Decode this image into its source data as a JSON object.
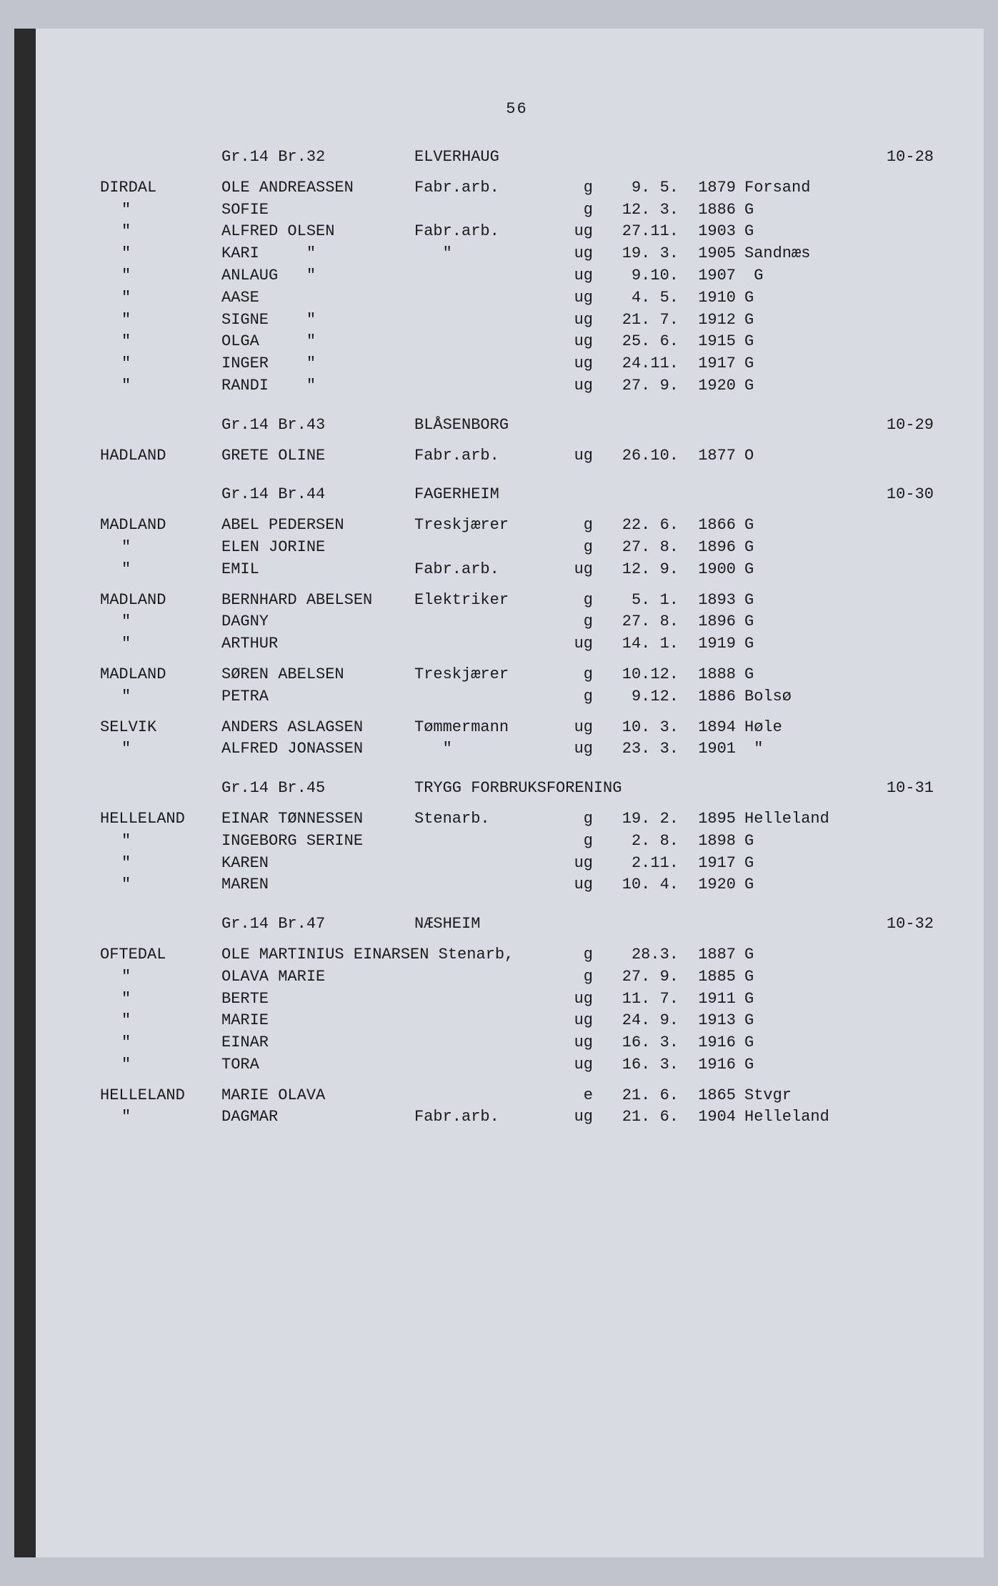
{
  "pageNumber": "56",
  "sections": [
    {
      "header": {
        "cadastre": "Gr.14 Br.32",
        "propertyName": "ELVERHAUG",
        "reference": "10-28"
      },
      "entries": [
        {
          "surname": "DIRDAL",
          "name": "OLE ANDREASSEN",
          "occupation": "Fabr.arb.",
          "status": "g",
          "date": "9. 5.",
          "year": "1879",
          "place": "Forsand"
        },
        {
          "surname": "\"",
          "name": "SOFIE",
          "occupation": "",
          "status": "g",
          "date": "12. 3.",
          "year": "1886",
          "place": "G"
        },
        {
          "surname": "\"",
          "name": "ALFRED OLSEN",
          "occupation": "Fabr.arb.",
          "status": "ug",
          "date": "27.11.",
          "year": "1903",
          "place": "G"
        },
        {
          "surname": "\"",
          "name": "KARI     \"",
          "occupation": "   \"",
          "status": "ug",
          "date": "19. 3.",
          "year": "1905",
          "place": "Sandnæs"
        },
        {
          "surname": "\"",
          "name": "ANLAUG   \"",
          "occupation": "",
          "status": "ug",
          "date": "9.10.",
          "year": "1907",
          "place": " G"
        },
        {
          "surname": "\"",
          "name": "AASE",
          "occupation": "",
          "status": "ug",
          "date": "4. 5.",
          "year": "1910",
          "place": "G"
        },
        {
          "surname": "\"",
          "name": "SIGNE    \"",
          "occupation": "",
          "status": "ug",
          "date": "21. 7.",
          "year": "1912",
          "place": "G"
        },
        {
          "surname": "\"",
          "name": "OLGA     \"",
          "occupation": "",
          "status": "ug",
          "date": "25. 6.",
          "year": "1915",
          "place": "G"
        },
        {
          "surname": "\"",
          "name": "INGER    \"",
          "occupation": "",
          "status": "ug",
          "date": "24.11.",
          "year": "1917",
          "place": "G"
        },
        {
          "surname": "\"",
          "name": "RANDI    \"",
          "occupation": "",
          "status": "ug",
          "date": "27. 9.",
          "year": "1920",
          "place": "G"
        }
      ]
    },
    {
      "header": {
        "cadastre": "Gr.14 Br.43",
        "propertyName": "BLÅSENBORG",
        "reference": "10-29"
      },
      "entries": [
        {
          "surname": "HADLAND",
          "name": "GRETE OLINE",
          "occupation": "Fabr.arb.",
          "status": "ug",
          "date": "26.10.",
          "year": "1877",
          "place": "O"
        }
      ]
    },
    {
      "header": {
        "cadastre": "Gr.14 Br.44",
        "propertyName": "FAGERHEIM",
        "reference": "10-30"
      },
      "entries": [
        {
          "surname": "MADLAND",
          "name": "ABEL PEDERSEN",
          "occupation": "Treskjærer",
          "status": "g",
          "date": "22. 6.",
          "year": "1866",
          "place": "G"
        },
        {
          "surname": "\"",
          "name": "ELEN JORINE",
          "occupation": "",
          "status": "g",
          "date": "27. 8.",
          "year": "1896",
          "place": "G"
        },
        {
          "surname": "\"",
          "name": "EMIL",
          "occupation": "Fabr.arb.",
          "status": "ug",
          "date": "12. 9.",
          "year": "1900",
          "place": "G"
        }
      ]
    },
    {
      "header": null,
      "entries": [
        {
          "surname": "MADLAND",
          "name": "BERNHARD ABELSEN",
          "occupation": "Elektriker",
          "status": "g",
          "date": "5. 1.",
          "year": "1893",
          "place": "G"
        },
        {
          "surname": "\"",
          "name": "DAGNY",
          "occupation": "",
          "status": "g",
          "date": "27. 8.",
          "year": "1896",
          "place": "G"
        },
        {
          "surname": "\"",
          "name": "ARTHUR",
          "occupation": "",
          "status": "ug",
          "date": "14. 1.",
          "year": "1919",
          "place": "G"
        }
      ]
    },
    {
      "header": null,
      "entries": [
        {
          "surname": "MADLAND",
          "name": "SØREN ABELSEN",
          "occupation": "Treskjærer",
          "status": "g",
          "date": "10.12.",
          "year": "1888",
          "place": "G"
        },
        {
          "surname": "\"",
          "name": "PETRA",
          "occupation": "",
          "status": "g",
          "date": "9.12.",
          "year": "1886",
          "place": "Bolsø"
        }
      ]
    },
    {
      "header": null,
      "entries": [
        {
          "surname": "SELVIK",
          "name": "ANDERS ASLAGSEN",
          "occupation": "Tømmermann",
          "status": "ug",
          "date": "10. 3.",
          "year": "1894",
          "place": "Høle"
        },
        {
          "surname": "\"",
          "name": "ALFRED JONASSEN",
          "occupation": "   \"",
          "status": "ug",
          "date": "23. 3.",
          "year": "1901",
          "place": " \""
        }
      ]
    },
    {
      "header": {
        "cadastre": "Gr.14 Br.45",
        "propertyName": "TRYGG FORBRUKSFORENING",
        "reference": "10-31"
      },
      "entries": [
        {
          "surname": "HELLELAND",
          "name": "EINAR TØNNESSEN",
          "occupation": "Stenarb.",
          "status": "g",
          "date": "19. 2.",
          "year": "1895",
          "place": "Helleland"
        },
        {
          "surname": "\"",
          "name": "INGEBORG SERINE",
          "occupation": "",
          "status": "g",
          "date": "2. 8.",
          "year": "1898",
          "place": "G"
        },
        {
          "surname": "\"",
          "name": "KAREN",
          "occupation": "",
          "status": "ug",
          "date": "2.11.",
          "year": "1917",
          "place": "G"
        },
        {
          "surname": "\"",
          "name": "MAREN",
          "occupation": "",
          "status": "ug",
          "date": "10. 4.",
          "year": "1920",
          "place": "G"
        }
      ]
    },
    {
      "header": {
        "cadastre": "Gr.14 Br.47",
        "propertyName": "NÆSHEIM",
        "reference": "10-32"
      },
      "entries": [
        {
          "surname": "OFTEDAL",
          "name": "OLE MARTINIUS EINARSEN Stenarb,",
          "occupation": "",
          "status": "g",
          "date": "28.3.",
          "year": "1887",
          "place": "G"
        },
        {
          "surname": "\"",
          "name": "OLAVA MARIE",
          "occupation": "",
          "status": "g",
          "date": "27. 9.",
          "year": "1885",
          "place": "G"
        },
        {
          "surname": "\"",
          "name": "BERTE",
          "occupation": "",
          "status": "ug",
          "date": "11. 7.",
          "year": "1911",
          "place": "G"
        },
        {
          "surname": "\"",
          "name": "MARIE",
          "occupation": "",
          "status": "ug",
          "date": "24. 9.",
          "year": "1913",
          "place": "G"
        },
        {
          "surname": "\"",
          "name": "EINAR",
          "occupation": "",
          "status": "ug",
          "date": "16. 3.",
          "year": "1916",
          "place": "G"
        },
        {
          "surname": "\"",
          "name": "TORA",
          "occupation": "",
          "status": "ug",
          "date": "16. 3.",
          "year": "1916",
          "place": "G"
        }
      ]
    },
    {
      "header": null,
      "entries": [
        {
          "surname": "HELLELAND",
          "name": "MARIE OLAVA",
          "occupation": "",
          "status": "e",
          "date": "21. 6.",
          "year": "1865",
          "place": "Stvgr"
        },
        {
          "surname": "\"",
          "name": "DAGMAR",
          "occupation": "Fabr.arb.",
          "status": "ug",
          "date": "21. 6.",
          "year": "1904",
          "place": "Helleland"
        }
      ]
    }
  ]
}
